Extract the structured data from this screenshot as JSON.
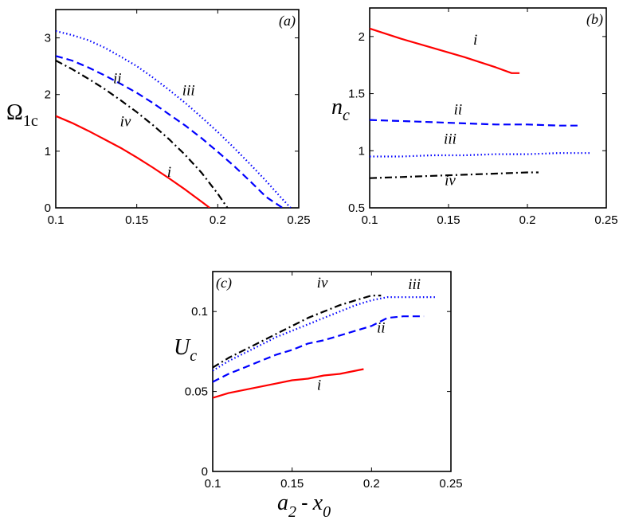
{
  "chart_data": [
    {
      "type": "line",
      "panel_label": "(a)",
      "ylabel": "Ω",
      "ylabel_sub": "1c",
      "xlim": [
        0.1,
        0.25
      ],
      "ylim": [
        0,
        3.5
      ],
      "xticks": [
        "0.1",
        "0.15",
        "0.2",
        "0.25"
      ],
      "xtick_values": [
        0.1,
        0.15,
        0.2,
        0.25
      ],
      "yticks": [
        "0",
        "1",
        "2",
        "3"
      ],
      "ytick_values": [
        0,
        1,
        2,
        3
      ],
      "series": [
        {
          "name": "i",
          "style": "solid",
          "color": "#ff0000",
          "x": [
            0.1,
            0.11,
            0.12,
            0.13,
            0.14,
            0.15,
            0.16,
            0.17,
            0.18,
            0.19,
            0.195
          ],
          "y": [
            1.62,
            1.5,
            1.36,
            1.21,
            1.06,
            0.89,
            0.71,
            0.52,
            0.32,
            0.11,
            0.0
          ]
        },
        {
          "name": "ii",
          "style": "dashed",
          "color": "#0000ff",
          "x": [
            0.1,
            0.11,
            0.12,
            0.13,
            0.14,
            0.15,
            0.16,
            0.17,
            0.18,
            0.19,
            0.2,
            0.21,
            0.22,
            0.23,
            0.24
          ],
          "y": [
            2.68,
            2.6,
            2.48,
            2.34,
            2.19,
            2.03,
            1.85,
            1.65,
            1.45,
            1.23,
            0.99,
            0.74,
            0.47,
            0.19,
            0.0
          ]
        },
        {
          "name": "iii",
          "style": "dotted",
          "color": "#0000ff",
          "x": [
            0.1,
            0.11,
            0.12,
            0.13,
            0.14,
            0.15,
            0.16,
            0.17,
            0.18,
            0.19,
            0.2,
            0.21,
            0.22,
            0.23,
            0.24,
            0.245
          ],
          "y": [
            3.12,
            3.05,
            2.96,
            2.83,
            2.67,
            2.5,
            2.3,
            2.08,
            1.85,
            1.6,
            1.34,
            1.06,
            0.77,
            0.47,
            0.15,
            0.0
          ]
        },
        {
          "name": "iv",
          "style": "dashdot",
          "color": "#000000",
          "x": [
            0.1,
            0.11,
            0.12,
            0.13,
            0.14,
            0.15,
            0.16,
            0.17,
            0.18,
            0.19,
            0.2,
            0.206
          ],
          "y": [
            2.6,
            2.45,
            2.28,
            2.1,
            1.9,
            1.69,
            1.46,
            1.21,
            0.93,
            0.62,
            0.25,
            0.0
          ]
        }
      ],
      "curve_labels": [
        {
          "text": "i",
          "x": 0.17,
          "y": 0.55
        },
        {
          "text": "ii",
          "x": 0.138,
          "y": 2.2
        },
        {
          "text": "iii",
          "x": 0.182,
          "y": 1.99
        },
        {
          "text": "iv",
          "x": 0.143,
          "y": 1.44
        }
      ]
    },
    {
      "type": "line",
      "panel_label": "(b)",
      "ylabel": "n",
      "ylabel_sub": "c",
      "xlim": [
        0.1,
        0.25
      ],
      "ylim": [
        0.5,
        2.25
      ],
      "xticks": [
        "0.1",
        "0.15",
        "0.2",
        "0.25"
      ],
      "xtick_values": [
        0.1,
        0.15,
        0.2,
        0.25
      ],
      "yticks": [
        "0.5",
        "1",
        "1.5",
        "2"
      ],
      "ytick_values": [
        0.5,
        1,
        1.5,
        2
      ],
      "series": [
        {
          "name": "i",
          "style": "solid",
          "color": "#ff0000",
          "x": [
            0.1,
            0.12,
            0.14,
            0.16,
            0.18,
            0.19,
            0.195
          ],
          "y": [
            2.07,
            1.98,
            1.9,
            1.82,
            1.73,
            1.68,
            1.68
          ]
        },
        {
          "name": "ii",
          "style": "dashed",
          "color": "#0000ff",
          "x": [
            0.1,
            0.12,
            0.14,
            0.16,
            0.18,
            0.2,
            0.22,
            0.233
          ],
          "y": [
            1.27,
            1.26,
            1.25,
            1.24,
            1.23,
            1.23,
            1.22,
            1.22
          ]
        },
        {
          "name": "iii",
          "style": "dotted",
          "color": "#0000ff",
          "x": [
            0.1,
            0.12,
            0.14,
            0.16,
            0.18,
            0.2,
            0.22,
            0.24
          ],
          "y": [
            0.95,
            0.95,
            0.96,
            0.96,
            0.97,
            0.97,
            0.98,
            0.98
          ]
        },
        {
          "name": "iv",
          "style": "dashdot",
          "color": "#000000",
          "x": [
            0.1,
            0.12,
            0.14,
            0.16,
            0.18,
            0.2,
            0.207
          ],
          "y": [
            0.76,
            0.77,
            0.78,
            0.79,
            0.8,
            0.81,
            0.81
          ]
        }
      ],
      "curve_labels": [
        {
          "text": "i",
          "x": 0.167,
          "y": 1.93
        },
        {
          "text": "ii",
          "x": 0.156,
          "y": 1.32
        },
        {
          "text": "iii",
          "x": 0.151,
          "y": 1.06
        },
        {
          "text": "iv",
          "x": 0.151,
          "y": 0.7
        }
      ]
    },
    {
      "type": "line",
      "panel_label": "(c)",
      "ylabel": "U",
      "ylabel_sub": "c",
      "xlabel": "a",
      "xlabel_sub1": "2",
      "xlabel_op": "-",
      "xlabel_mid": "x",
      "xlabel_sub2": "0",
      "xlim": [
        0.1,
        0.25
      ],
      "ylim": [
        0,
        0.125
      ],
      "xticks": [
        "0.1",
        "0.15",
        "0.2",
        "0.25"
      ],
      "xtick_values": [
        0.1,
        0.15,
        0.2,
        0.25
      ],
      "yticks": [
        "0",
        "0.05",
        "0.1"
      ],
      "ytick_values": [
        0,
        0.05,
        0.1
      ],
      "series": [
        {
          "name": "i",
          "style": "solid",
          "color": "#ff0000",
          "x": [
            0.1,
            0.11,
            0.12,
            0.13,
            0.14,
            0.15,
            0.16,
            0.17,
            0.18,
            0.19,
            0.195
          ],
          "y": [
            0.046,
            0.049,
            0.051,
            0.053,
            0.055,
            0.057,
            0.058,
            0.06,
            0.061,
            0.063,
            0.064
          ]
        },
        {
          "name": "ii",
          "style": "dashed",
          "color": "#0000ff",
          "x": [
            0.1,
            0.11,
            0.12,
            0.13,
            0.14,
            0.15,
            0.16,
            0.17,
            0.18,
            0.19,
            0.2,
            0.21,
            0.22,
            0.233
          ],
          "y": [
            0.056,
            0.061,
            0.065,
            0.069,
            0.073,
            0.076,
            0.08,
            0.082,
            0.085,
            0.088,
            0.091,
            0.096,
            0.097,
            0.097
          ]
        },
        {
          "name": "iii",
          "style": "dotted",
          "color": "#0000ff",
          "x": [
            0.1,
            0.11,
            0.12,
            0.13,
            0.14,
            0.15,
            0.16,
            0.17,
            0.18,
            0.19,
            0.2,
            0.21,
            0.22,
            0.23,
            0.24
          ],
          "y": [
            0.063,
            0.069,
            0.074,
            0.079,
            0.084,
            0.088,
            0.092,
            0.096,
            0.1,
            0.104,
            0.107,
            0.109,
            0.109,
            0.109,
            0.109
          ]
        },
        {
          "name": "iv",
          "style": "dashdot",
          "color": "#000000",
          "x": [
            0.1,
            0.11,
            0.12,
            0.13,
            0.14,
            0.15,
            0.16,
            0.17,
            0.18,
            0.19,
            0.2,
            0.206
          ],
          "y": [
            0.065,
            0.071,
            0.076,
            0.081,
            0.086,
            0.091,
            0.096,
            0.1,
            0.104,
            0.107,
            0.11,
            0.11
          ]
        }
      ],
      "curve_labels": [
        {
          "text": "i",
          "x": 0.167,
          "y": 0.051
        },
        {
          "text": "ii",
          "x": 0.206,
          "y": 0.087
        },
        {
          "text": "iii",
          "x": 0.227,
          "y": 0.114
        },
        {
          "text": "iv",
          "x": 0.169,
          "y": 0.115
        }
      ]
    }
  ]
}
